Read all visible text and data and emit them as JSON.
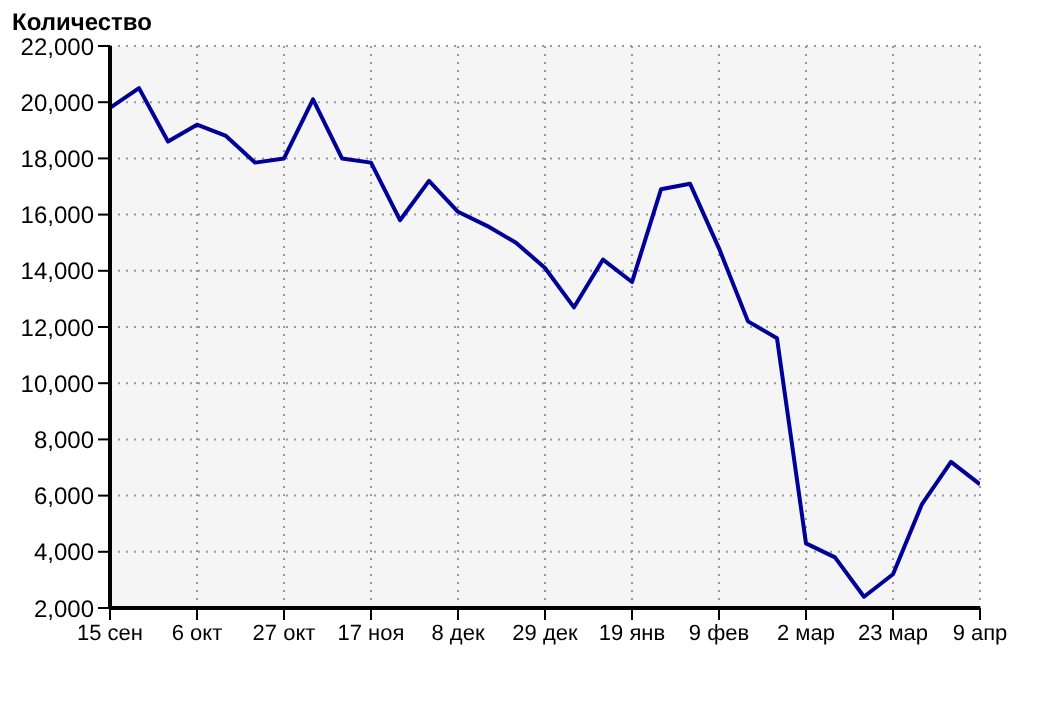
{
  "chart_data": {
    "type": "line",
    "ylabel": "Количество",
    "categories": [
      "15 сен",
      null,
      null,
      "6 окт",
      null,
      null,
      "27 окт",
      null,
      null,
      "17 ноя",
      null,
      null,
      "8 дек",
      null,
      null,
      "29 дек",
      null,
      null,
      "19 янв",
      null,
      null,
      "9 фев",
      null,
      null,
      "2 мар",
      null,
      null,
      "23 мар",
      null,
      null,
      "9 апр"
    ],
    "series": [
      {
        "color": "#000099",
        "values": [
          19800,
          20500,
          18600,
          19200,
          18800,
          17850,
          18000,
          20100,
          18000,
          17850,
          15800,
          17200,
          16100,
          15600,
          15000,
          14100,
          12700,
          14400,
          13600,
          16900,
          17100,
          14800,
          12200,
          11600,
          4300,
          3800,
          2400,
          3200,
          5700,
          7200,
          6400
        ]
      }
    ],
    "ylim": [
      2000,
      22000
    ],
    "yticks": [
      {
        "value": 2000,
        "label": "2,000"
      },
      {
        "value": 4000,
        "label": "4,000"
      },
      {
        "value": 6000,
        "label": "6,000"
      },
      {
        "value": 8000,
        "label": "8,000"
      },
      {
        "value": 10000,
        "label": "10,000"
      },
      {
        "value": 12000,
        "label": "12,000"
      },
      {
        "value": 14000,
        "label": "14,000"
      },
      {
        "value": 16000,
        "label": "16,000"
      },
      {
        "value": 18000,
        "label": "18,000"
      },
      {
        "value": 20000,
        "label": "20,000"
      },
      {
        "value": 22000,
        "label": "22,000"
      }
    ],
    "grid": true,
    "marker": "none",
    "line_style": "solid"
  }
}
